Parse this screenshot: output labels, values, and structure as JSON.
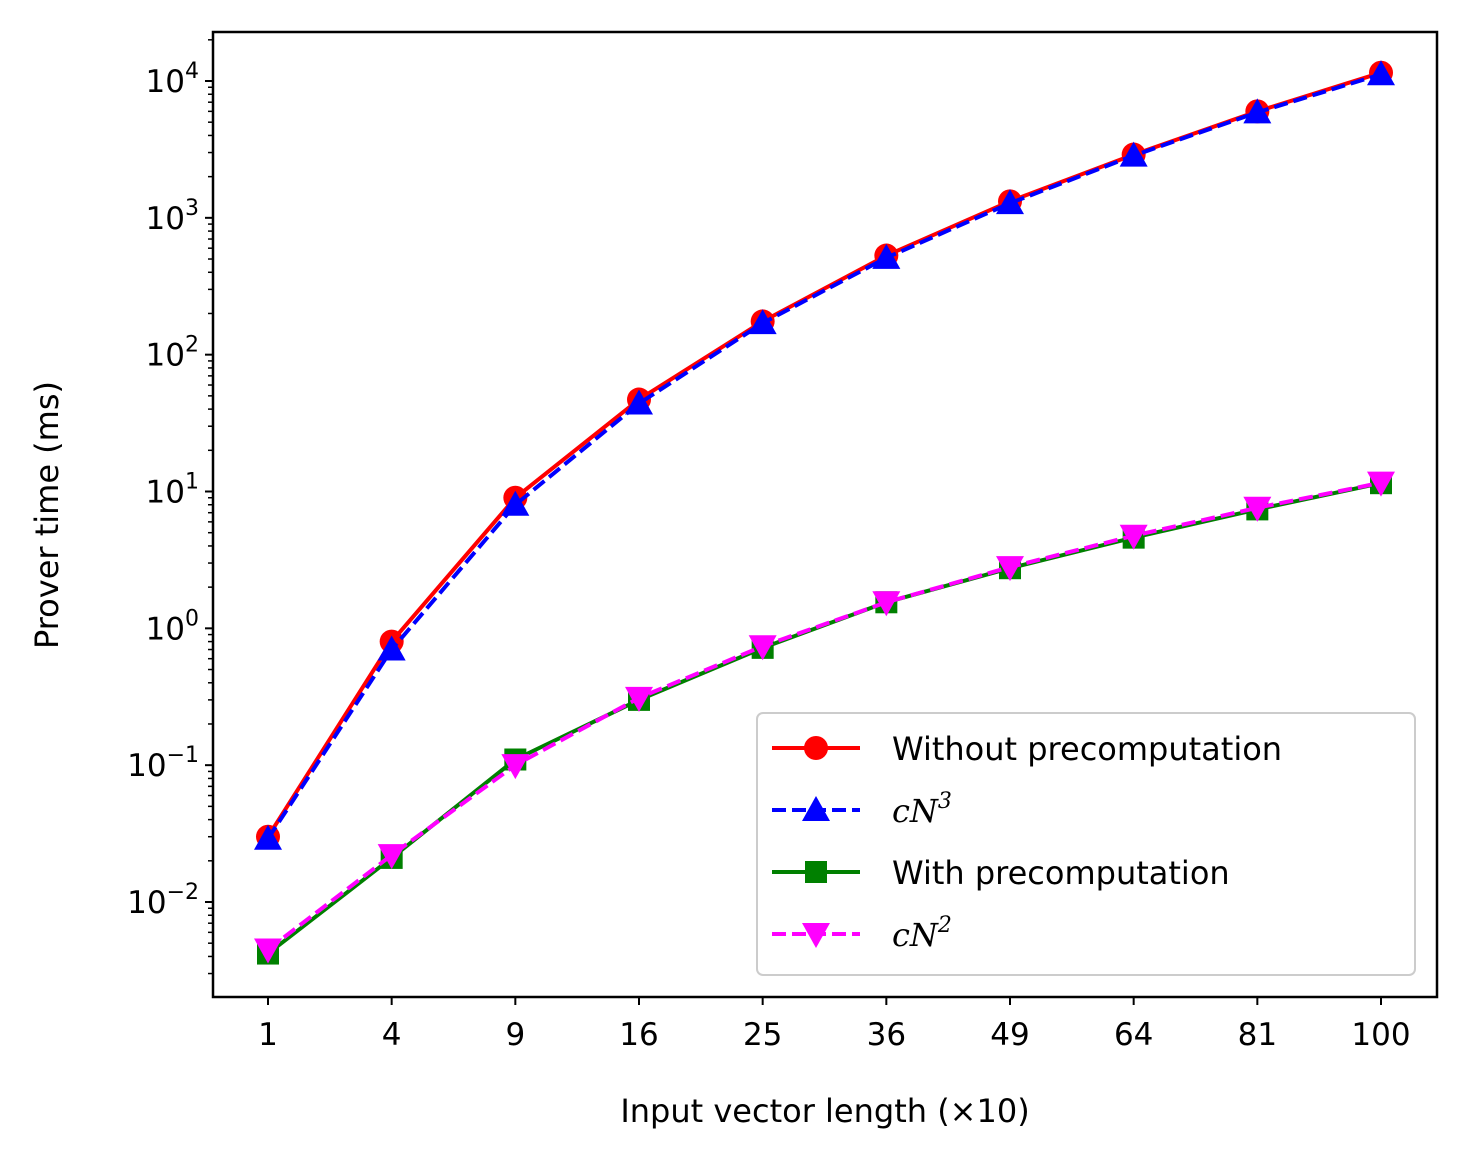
{
  "chart_data": {
    "type": "line",
    "xlabel": "Input vector length (×10)",
    "ylabel": "Prover time (ms)",
    "x": [
      1,
      4,
      9,
      16,
      25,
      36,
      49,
      64,
      81,
      100
    ],
    "x_tick_labels": [
      "1",
      "4",
      "9",
      "16",
      "25",
      "36",
      "49",
      "64",
      "81",
      "100"
    ],
    "x_scale": "sqrt",
    "y_scale": "log",
    "ylim": [
      0.002,
      22000
    ],
    "y_ticks": [
      {
        "base": "10",
        "exp": "−2"
      },
      {
        "base": "10",
        "exp": "−1"
      },
      {
        "base": "10",
        "exp": "0"
      },
      {
        "base": "10",
        "exp": "1"
      },
      {
        "base": "10",
        "exp": "2"
      },
      {
        "base": "10",
        "exp": "3"
      },
      {
        "base": "10",
        "exp": "4"
      }
    ],
    "grid": false,
    "legend_position": "bottom-right",
    "series": [
      {
        "name": "Without precomputation",
        "name_math": false,
        "color": "#ff0000",
        "marker": "circle",
        "line_style": "solid",
        "values": [
          0.03,
          0.8,
          9,
          47,
          175,
          530,
          1320,
          2900,
          6000,
          11500
        ]
      },
      {
        "name": "cN",
        "name_sup": "3",
        "name_math": true,
        "color": "#0000ff",
        "marker": "triangle-up",
        "line_style": "dashed",
        "values": [
          0.029,
          0.7,
          8,
          44,
          170,
          510,
          1280,
          2850,
          5900,
          11200
        ]
      },
      {
        "name": "With precomputation",
        "name_math": false,
        "color": "#008000",
        "marker": "square",
        "line_style": "solid",
        "values": [
          0.0042,
          0.021,
          0.11,
          0.3,
          0.72,
          1.55,
          2.75,
          4.6,
          7.4,
          11.5
        ]
      },
      {
        "name": "cN",
        "name_sup": "2",
        "name_math": true,
        "color": "#ff00ff",
        "marker": "triangle-down",
        "line_style": "dashed",
        "values": [
          0.0045,
          0.022,
          0.1,
          0.31,
          0.74,
          1.55,
          2.8,
          4.75,
          7.6,
          11.6
        ]
      }
    ]
  }
}
